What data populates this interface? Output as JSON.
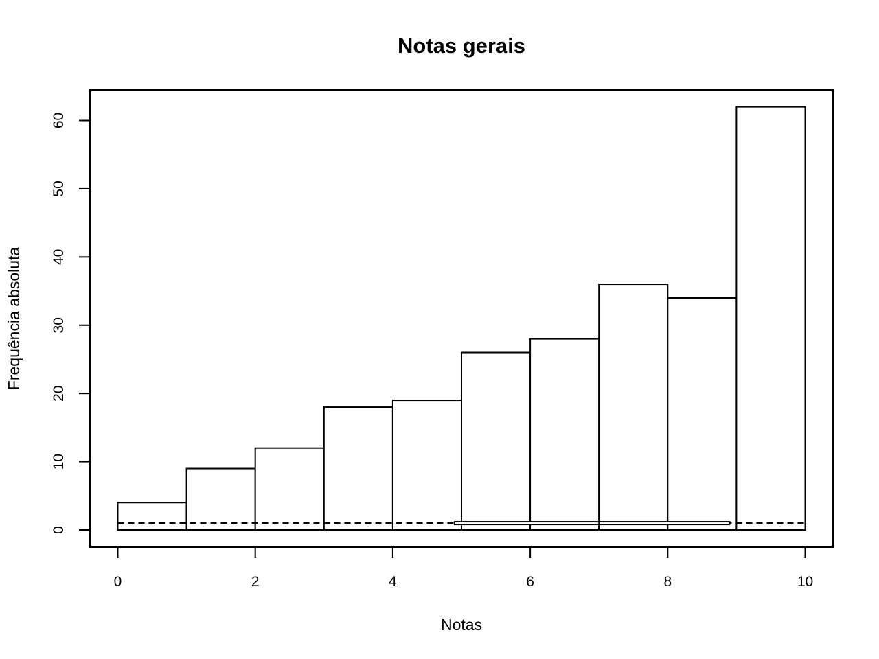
{
  "chart_data": {
    "type": "bar",
    "title": "Notas gerais",
    "xlabel": "Notas",
    "ylabel": "Frequência absoluta",
    "bins": [
      [
        0,
        1
      ],
      [
        1,
        2
      ],
      [
        2,
        3
      ],
      [
        3,
        4
      ],
      [
        4,
        5
      ],
      [
        5,
        6
      ],
      [
        6,
        7
      ],
      [
        7,
        8
      ],
      [
        8,
        9
      ],
      [
        9,
        10
      ]
    ],
    "values": [
      4,
      9,
      12,
      18,
      19,
      26,
      28,
      36,
      34,
      62
    ],
    "xlim": [
      0,
      10
    ],
    "ylim": [
      0,
      60
    ],
    "xticks": [
      0,
      2,
      4,
      6,
      8,
      10
    ],
    "yticks": [
      0,
      10,
      20,
      30,
      40,
      50,
      60
    ],
    "reference_line": {
      "y": 1,
      "style": "dashed"
    },
    "horizontal_boxplot": {
      "y": 1,
      "x_from": 4.9,
      "x_median": 7,
      "x_to": 8.9
    },
    "grid": false,
    "legend": "none"
  }
}
